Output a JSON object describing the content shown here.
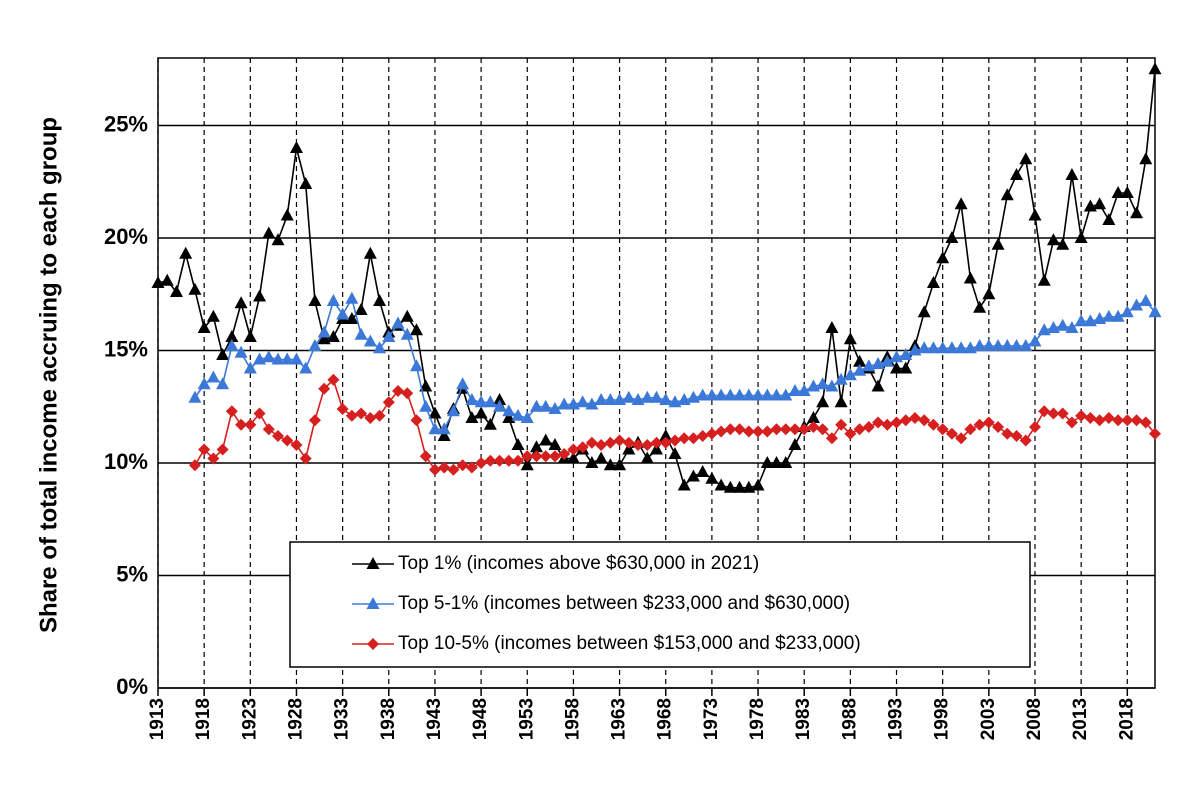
{
  "chart_data": {
    "type": "line",
    "ylabel": "Share of total income accruing to each group",
    "x": [
      1913,
      1914,
      1915,
      1916,
      1917,
      1918,
      1919,
      1920,
      1921,
      1922,
      1923,
      1924,
      1925,
      1926,
      1927,
      1928,
      1929,
      1930,
      1931,
      1932,
      1933,
      1934,
      1935,
      1936,
      1937,
      1938,
      1939,
      1940,
      1941,
      1942,
      1943,
      1944,
      1945,
      1946,
      1947,
      1948,
      1949,
      1950,
      1951,
      1952,
      1953,
      1954,
      1955,
      1956,
      1957,
      1958,
      1959,
      1960,
      1961,
      1962,
      1963,
      1964,
      1965,
      1966,
      1967,
      1968,
      1969,
      1970,
      1971,
      1972,
      1973,
      1974,
      1975,
      1976,
      1977,
      1978,
      1979,
      1980,
      1981,
      1982,
      1983,
      1984,
      1985,
      1986,
      1987,
      1988,
      1989,
      1990,
      1991,
      1992,
      1993,
      1994,
      1995,
      1996,
      1997,
      1998,
      1999,
      2000,
      2001,
      2002,
      2003,
      2004,
      2005,
      2006,
      2007,
      2008,
      2009,
      2010,
      2011,
      2012,
      2013,
      2014,
      2015,
      2016,
      2017,
      2018,
      2019,
      2020,
      2021
    ],
    "series": [
      {
        "name": "Top 1% (incomes above $630,000 in 2021)",
        "color": "#000000",
        "marker": "triangle",
        "values": [
          18.0,
          18.1,
          17.6,
          19.3,
          17.7,
          16.0,
          16.5,
          14.8,
          15.6,
          17.1,
          15.6,
          17.4,
          20.2,
          19.9,
          21.0,
          24.0,
          22.4,
          17.2,
          15.5,
          15.6,
          16.4,
          16.4,
          16.8,
          19.3,
          17.2,
          15.8,
          16.1,
          16.5,
          15.9,
          13.4,
          12.2,
          11.2,
          12.4,
          13.3,
          12.0,
          12.2,
          11.7,
          12.8,
          12.0,
          10.8,
          9.9,
          10.7,
          11.0,
          10.8,
          10.2,
          10.2,
          10.6,
          10.0,
          10.2,
          9.9,
          9.9,
          10.6,
          10.9,
          10.2,
          10.6,
          11.2,
          10.4,
          9.0,
          9.4,
          9.6,
          9.3,
          9.0,
          8.9,
          8.9,
          8.9,
          9.0,
          10.0,
          10.0,
          10.0,
          10.8,
          11.6,
          12.0,
          12.7,
          16.0,
          12.7,
          15.5,
          14.5,
          14.2,
          13.4,
          14.7,
          14.2,
          14.2,
          15.2,
          16.7,
          18.0,
          19.1,
          20.0,
          21.5,
          18.2,
          16.9,
          17.5,
          19.7,
          21.9,
          22.8,
          23.5,
          21.0,
          18.1,
          19.9,
          19.7,
          22.8,
          20.0,
          21.4,
          21.5,
          20.8,
          22.0,
          22.0,
          21.1,
          23.5,
          27.5
        ]
      },
      {
        "name": "Top 5-1% (incomes between $233,000 and $630,000)",
        "color": "#3c78d8",
        "marker": "triangle",
        "values": [
          null,
          null,
          null,
          null,
          12.9,
          13.5,
          13.8,
          13.5,
          15.2,
          14.9,
          14.2,
          14.6,
          14.7,
          14.6,
          14.6,
          14.6,
          14.2,
          15.2,
          15.8,
          17.2,
          16.6,
          17.3,
          15.7,
          15.4,
          15.1,
          15.6,
          16.2,
          15.7,
          14.3,
          12.5,
          11.5,
          11.5,
          12.3,
          13.5,
          12.8,
          12.7,
          12.7,
          12.5,
          12.3,
          12.1,
          12.0,
          12.5,
          12.5,
          12.4,
          12.6,
          12.6,
          12.7,
          12.6,
          12.8,
          12.8,
          12.8,
          12.9,
          12.8,
          12.9,
          12.9,
          12.8,
          12.7,
          12.8,
          12.9,
          13.0,
          13.0,
          13.0,
          13.0,
          13.0,
          13.0,
          13.0,
          13.0,
          13.0,
          13.0,
          13.2,
          13.2,
          13.4,
          13.5,
          13.4,
          13.7,
          13.9,
          14.1,
          14.3,
          14.4,
          14.5,
          14.7,
          14.8,
          15.0,
          15.1,
          15.1,
          15.1,
          15.1,
          15.1,
          15.1,
          15.2,
          15.2,
          15.2,
          15.2,
          15.2,
          15.2,
          15.4,
          15.9,
          16.0,
          16.1,
          16.0,
          16.3,
          16.3,
          16.4,
          16.5,
          16.5,
          16.7,
          17.0,
          17.2,
          16.7
        ]
      },
      {
        "name": "Top 10-5% (incomes between $153,000 and $233,000)",
        "color": "#d62020",
        "marker": "diamond",
        "values": [
          null,
          null,
          null,
          null,
          9.9,
          10.6,
          10.2,
          10.6,
          12.3,
          11.7,
          11.7,
          12.2,
          11.5,
          11.2,
          11.0,
          10.8,
          10.2,
          11.9,
          13.3,
          13.7,
          12.4,
          12.1,
          12.2,
          12.0,
          12.1,
          12.7,
          13.2,
          13.1,
          11.9,
          10.3,
          9.7,
          9.8,
          9.7,
          9.9,
          9.8,
          10.0,
          10.1,
          10.1,
          10.1,
          10.1,
          10.3,
          10.3,
          10.3,
          10.3,
          10.4,
          10.6,
          10.7,
          10.9,
          10.8,
          10.9,
          11.0,
          10.9,
          10.8,
          10.8,
          10.9,
          10.9,
          11.0,
          11.1,
          11.1,
          11.2,
          11.3,
          11.4,
          11.5,
          11.5,
          11.4,
          11.4,
          11.4,
          11.5,
          11.5,
          11.5,
          11.5,
          11.6,
          11.5,
          11.1,
          11.7,
          11.3,
          11.5,
          11.6,
          11.8,
          11.7,
          11.8,
          11.9,
          12.0,
          11.9,
          11.7,
          11.5,
          11.3,
          11.1,
          11.5,
          11.7,
          11.8,
          11.6,
          11.3,
          11.2,
          11.0,
          11.6,
          12.3,
          12.2,
          12.2,
          11.8,
          12.1,
          12.0,
          11.9,
          12.0,
          11.9,
          11.9,
          11.9,
          11.8,
          11.3
        ]
      }
    ],
    "xlim": [
      1913,
      2021
    ],
    "xticks": [
      1913,
      1918,
      1923,
      1928,
      1933,
      1938,
      1943,
      1948,
      1953,
      1958,
      1963,
      1968,
      1973,
      1978,
      1983,
      1988,
      1993,
      1998,
      2003,
      2008,
      2013,
      2018
    ],
    "ylim": [
      0,
      28
    ],
    "yticks": [
      {
        "value": 0,
        "label": "0%"
      },
      {
        "value": 5,
        "label": "5%"
      },
      {
        "value": 10,
        "label": "10%"
      },
      {
        "value": 15,
        "label": "15%"
      },
      {
        "value": 20,
        "label": "20%"
      },
      {
        "value": 25,
        "label": "25%"
      }
    ],
    "grid": true,
    "legend": "lower center"
  }
}
